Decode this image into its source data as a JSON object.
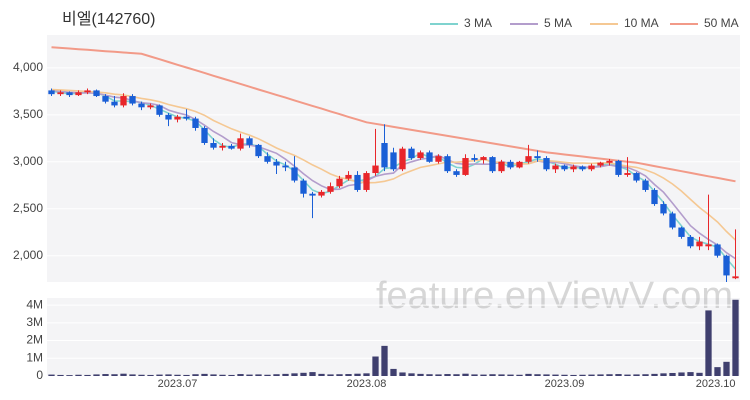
{
  "chart_data": [
    {
      "type": "candlestick",
      "title": "비엘(142760)",
      "watermark": "feature.enViewV.com",
      "open": [
        3760,
        3720,
        3740,
        3710,
        3740,
        3760,
        3700,
        3640,
        3600,
        3700,
        3620,
        3580,
        3600,
        3500,
        3450,
        3480,
        3460,
        3360,
        3200,
        3150,
        3170,
        3140,
        3250,
        3180,
        3060,
        3000,
        2960,
        2940,
        2800,
        2660,
        2640,
        2680,
        2740,
        2820,
        2860,
        2700,
        2880,
        3200,
        3100,
        2920,
        3140,
        3040,
        3100,
        3000,
        3060,
        2900,
        2860,
        3040,
        3020,
        3050,
        2900,
        3000,
        2940,
        3000,
        3060,
        3040,
        2920,
        2960,
        2920,
        2950,
        2920,
        2960,
        2990,
        3010,
        2860,
        2880,
        2800,
        2700,
        2550,
        2450,
        2300,
        2200,
        2100,
        2100,
        2120,
        2000,
        1760
      ],
      "high": [
        3780,
        3760,
        3750,
        3760,
        3780,
        3770,
        3720,
        3700,
        3730,
        3720,
        3640,
        3620,
        3610,
        3520,
        3500,
        3560,
        3480,
        3380,
        3250,
        3200,
        3190,
        3300,
        3270,
        3190,
        3100,
        3030,
        3000,
        3060,
        2820,
        2680,
        2700,
        2780,
        2850,
        2900,
        2900,
        2900,
        3350,
        3400,
        3150,
        3160,
        3160,
        3120,
        3120,
        3080,
        3080,
        2920,
        3080,
        3080,
        3060,
        3060,
        3020,
        3020,
        3010,
        3180,
        3120,
        3060,
        2980,
        2970,
        2970,
        2960,
        2980,
        3000,
        3030,
        3020,
        3050,
        2890,
        2820,
        2720,
        2580,
        2470,
        2310,
        2220,
        2200,
        2650,
        2130,
        2010,
        2280
      ],
      "low": [
        3700,
        3700,
        3690,
        3700,
        3720,
        3690,
        3620,
        3580,
        3580,
        3600,
        3550,
        3560,
        3480,
        3380,
        3420,
        3440,
        3330,
        3180,
        3130,
        3120,
        3130,
        3120,
        3150,
        3040,
        2980,
        2870,
        2900,
        2780,
        2620,
        2400,
        2620,
        2660,
        2720,
        2800,
        2680,
        2680,
        2850,
        2900,
        2900,
        2900,
        3020,
        3020,
        2990,
        2980,
        2880,
        2840,
        2850,
        3000,
        2980,
        2880,
        2880,
        2920,
        2930,
        2980,
        3000,
        2900,
        2880,
        2900,
        2890,
        2900,
        2900,
        2940,
        2960,
        2840,
        2840,
        2780,
        2680,
        2530,
        2430,
        2280,
        2180,
        2080,
        2060,
        2060,
        1980,
        1720,
        1750
      ],
      "close": [
        3720,
        3740,
        3710,
        3740,
        3760,
        3700,
        3640,
        3600,
        3700,
        3620,
        3580,
        3600,
        3500,
        3450,
        3480,
        3460,
        3360,
        3200,
        3150,
        3170,
        3140,
        3250,
        3180,
        3060,
        3000,
        2960,
        2940,
        2800,
        2660,
        2640,
        2680,
        2740,
        2820,
        2860,
        2700,
        2880,
        2960,
        2940,
        2920,
        3140,
        3040,
        3100,
        3000,
        3060,
        2900,
        2860,
        3040,
        3020,
        3050,
        2900,
        3000,
        2940,
        3000,
        3060,
        3040,
        2920,
        2960,
        2920,
        2950,
        2920,
        2960,
        2990,
        3010,
        2860,
        2880,
        2800,
        2700,
        2550,
        2450,
        2300,
        2200,
        2100,
        2150,
        2120,
        2000,
        1790,
        1780
      ],
      "up_color": "#e8262a",
      "down_color": "#1a5fd6",
      "series": [
        {
          "name": "3 MA",
          "color": "#7fd3cf",
          "values": [
            3750,
            3740,
            3723,
            3730,
            3737,
            3733,
            3700,
            3647,
            3647,
            3640,
            3633,
            3600,
            3560,
            3517,
            3477,
            3463,
            3433,
            3340,
            3237,
            3173,
            3153,
            3187,
            3190,
            3163,
            3080,
            3007,
            2967,
            2900,
            2800,
            2700,
            2660,
            2687,
            2747,
            2807,
            2793,
            2813,
            2847,
            2927,
            2940,
            3000,
            3033,
            3093,
            3047,
            3053,
            2987,
            2940,
            2933,
            2973,
            3037,
            2990,
            2983,
            2947,
            2980,
            3000,
            3033,
            3007,
            2973,
            2933,
            2943,
            2930,
            2943,
            2957,
            2987,
            2953,
            2917,
            2847,
            2793,
            2683,
            2567,
            2433,
            2317,
            2200,
            2150,
            2123,
            2090,
            1970,
            1857
          ]
        },
        {
          "name": "5 MA",
          "color": "#b39dcc",
          "values": [
            3760,
            3750,
            3740,
            3735,
            3734,
            3730,
            3710,
            3688,
            3680,
            3652,
            3628,
            3620,
            3600,
            3550,
            3522,
            3498,
            3450,
            3390,
            3322,
            3268,
            3204,
            3182,
            3178,
            3160,
            3126,
            3090,
            3028,
            2952,
            2872,
            2800,
            2744,
            2704,
            2708,
            2748,
            2760,
            2800,
            2844,
            2868,
            2880,
            2968,
            3000,
            3028,
            3040,
            3068,
            3020,
            2984,
            2972,
            2976,
            2974,
            2974,
            3002,
            2982,
            2978,
            2980,
            3008,
            2992,
            2996,
            2980,
            2958,
            2942,
            2942,
            2948,
            2966,
            2948,
            2940,
            2902,
            2850,
            2758,
            2676,
            2560,
            2440,
            2320,
            2240,
            2174,
            2114,
            2032,
            1968
          ]
        },
        {
          "name": "10 MA",
          "color": "#f5c893",
          "values": [
            3770,
            3765,
            3760,
            3755,
            3748,
            3742,
            3735,
            3720,
            3712,
            3693,
            3675,
            3660,
            3640,
            3610,
            3587,
            3565,
            3535,
            3495,
            3440,
            3395,
            3351,
            3316,
            3284,
            3245,
            3197,
            3147,
            3105,
            3068,
            3020,
            2967,
            2921,
            2870,
            2834,
            2814,
            2784,
            2776,
            2778,
            2792,
            2818,
            2868,
            2904,
            2940,
            2958,
            2978,
            2998,
            2996,
            3004,
            3012,
            3025,
            2999,
            2995,
            2979,
            2979,
            2979,
            3007,
            3013,
            3005,
            2995,
            2985,
            2987,
            2983,
            2988,
            2989,
            2969,
            2953,
            2940,
            2914,
            2877,
            2826,
            2764,
            2688,
            2599,
            2513,
            2439,
            2359,
            2258,
            2166
          ]
        },
        {
          "name": "50 MA",
          "color": "#f29a88",
          "values": [
            4220,
            4213,
            4206,
            4199,
            4192,
            4185,
            4178,
            4171,
            4164,
            4157,
            4150,
            4121,
            4092,
            4062,
            4033,
            4004,
            3975,
            3946,
            3916,
            3887,
            3858,
            3829,
            3800,
            3770,
            3741,
            3712,
            3683,
            3654,
            3624,
            3595,
            3566,
            3537,
            3508,
            3478,
            3449,
            3420,
            3404,
            3388,
            3372,
            3356,
            3340,
            3324,
            3308,
            3292,
            3276,
            3260,
            3244,
            3228,
            3212,
            3196,
            3180,
            3164,
            3148,
            3132,
            3116,
            3100,
            3089,
            3078,
            3067,
            3056,
            3045,
            3034,
            3023,
            3012,
            3001,
            2990,
            2972,
            2954,
            2936,
            2918,
            2900,
            2882,
            2864,
            2846,
            2828,
            2810,
            2792
          ]
        }
      ],
      "ylim": [
        1720,
        4350
      ],
      "yticks": [
        {
          "value": 2000,
          "label": "2,000"
        },
        {
          "value": 2500,
          "label": "2,500"
        },
        {
          "value": 3000,
          "label": "3,000"
        },
        {
          "value": 3500,
          "label": "3,500"
        },
        {
          "value": 4000,
          "label": "4,000"
        }
      ],
      "grid": true,
      "legend": "top-right"
    },
    {
      "type": "bar",
      "color": "#3f3f6e",
      "categories": [
        null,
        null,
        null,
        null,
        null,
        null,
        null,
        null,
        null,
        null,
        null,
        null,
        null,
        null,
        "2023.07",
        null,
        null,
        null,
        null,
        null,
        null,
        null,
        null,
        null,
        null,
        null,
        null,
        null,
        null,
        null,
        null,
        null,
        null,
        null,
        null,
        "2023.08",
        null,
        null,
        null,
        null,
        null,
        null,
        null,
        null,
        null,
        null,
        null,
        null,
        null,
        null,
        null,
        null,
        null,
        null,
        null,
        null,
        null,
        "2023.09",
        null,
        null,
        null,
        null,
        null,
        null,
        null,
        null,
        null,
        null,
        null,
        null,
        null,
        null,
        null,
        null,
        null,
        null,
        "2023.10"
      ],
      "values": [
        80000,
        60000,
        50000,
        70000,
        60000,
        90000,
        110000,
        100000,
        130000,
        90000,
        70000,
        60000,
        80000,
        90000,
        70000,
        60000,
        100000,
        120000,
        90000,
        70000,
        60000,
        110000,
        80000,
        90000,
        70000,
        100000,
        120000,
        150000,
        180000,
        220000,
        120000,
        90000,
        100000,
        110000,
        130000,
        150000,
        1100000,
        1700000,
        400000,
        200000,
        150000,
        120000,
        100000,
        90000,
        110000,
        100000,
        130000,
        90000,
        80000,
        100000,
        90000,
        80000,
        70000,
        120000,
        100000,
        90000,
        80000,
        70000,
        60000,
        70000,
        80000,
        90000,
        100000,
        110000,
        80000,
        90000,
        100000,
        120000,
        150000,
        170000,
        200000,
        220000,
        180000,
        3700000,
        500000,
        800000,
        4300000
      ],
      "ylim": [
        0,
        4400000
      ],
      "yticks": [
        0,
        {
          "value": 1000000,
          "label": "1M"
        },
        {
          "value": 2000000,
          "label": "2M"
        },
        {
          "value": 3000000,
          "label": "3M"
        },
        {
          "value": 4000000,
          "label": "4M"
        }
      ],
      "grid": true
    }
  ]
}
